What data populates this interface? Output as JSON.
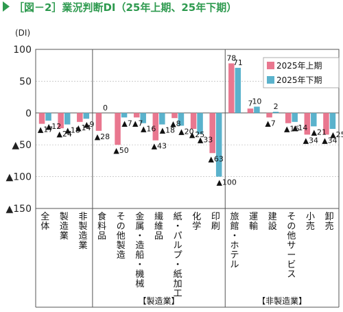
{
  "title": "［図－2］業況判断DI（25年上期、25年下期）",
  "unit": "(DI)",
  "chart_data": {
    "type": "bar",
    "title": "［図－2］業況判断DI（25年上期、25年下期）",
    "ylabel": "(DI)",
    "ylim": [
      -150,
      100
    ],
    "yticks": [
      {
        "value": 100,
        "label": "100"
      },
      {
        "value": 50,
        "label": "50"
      },
      {
        "value": 0,
        "label": "0"
      },
      {
        "value": -50,
        "label": "▲50"
      },
      {
        "value": -100,
        "label": "▲100"
      },
      {
        "value": -150,
        "label": "▲150"
      }
    ],
    "grid": true,
    "legend_position": "top-right",
    "categories": [
      "全体",
      "製造業",
      "非製造業",
      "食料品",
      "その他製造",
      "金属・造船・機械",
      "繊維品",
      "紙・パルプ・紙加工",
      "化学",
      "印刷",
      "旅館・ホテル",
      "運輸",
      "建設",
      "その他サービス",
      "小売",
      "卸売"
    ],
    "series": [
      {
        "name": "2025年上期",
        "color": "#e9778f",
        "values": [
          -17,
          -24,
          -14,
          -28,
          -50,
          -7,
          -43,
          -8,
          -25,
          -63,
          78,
          7,
          -7,
          -16,
          -34,
          -34
        ],
        "labels": [
          "▲17",
          "▲24",
          "▲14",
          "▲28",
          "▲50",
          "▲7",
          "▲43",
          "▲8",
          "▲25",
          "▲63",
          "78",
          "7",
          "▲7",
          "▲16",
          "▲34",
          "▲34"
        ]
      },
      {
        "name": "2025年下期",
        "color": "#5ab2cc",
        "values": [
          -12,
          -18,
          -9,
          0,
          -7,
          -16,
          -18,
          -20,
          -33,
          -100,
          71,
          10,
          2,
          -14,
          -21,
          -25
        ],
        "labels": [
          "▲12",
          "▲18",
          "▲9",
          "0",
          "▲7",
          "▲16",
          "▲18",
          "▲20",
          "▲33",
          "▲100",
          "71",
          "10",
          "2",
          "▲14",
          "▲21",
          "▲25"
        ]
      }
    ],
    "groups": [
      {
        "label": "【製造業】",
        "from": 3,
        "to": 9
      },
      {
        "label": "【非製造業】",
        "from": 10,
        "to": 15
      }
    ]
  }
}
